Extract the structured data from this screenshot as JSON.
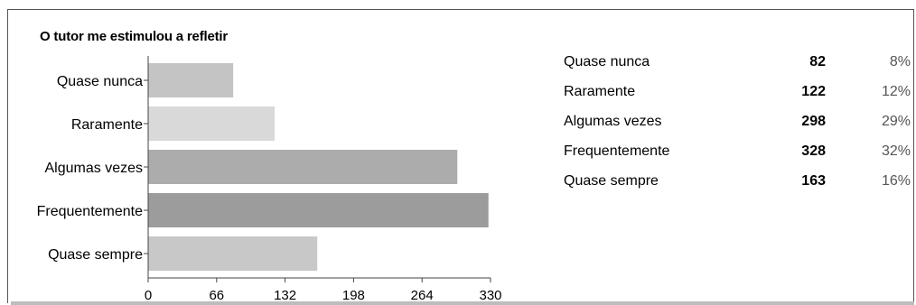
{
  "chart_data": {
    "type": "bar",
    "orientation": "horizontal",
    "title": "O tutor me estimulou a refletir",
    "categories": [
      "Quase nunca",
      "Raramente",
      "Algumas vezes",
      "Frequentemente",
      "Quase sempre"
    ],
    "values": [
      82,
      122,
      298,
      328,
      163
    ],
    "percentages": [
      "8%",
      "12%",
      "29%",
      "32%",
      "16%"
    ],
    "colors": [
      "#c4c4c4",
      "#d9d9d9",
      "#acacac",
      "#9c9c9c",
      "#c8c8c8"
    ],
    "xlim": [
      0,
      330
    ],
    "xticks": [
      0,
      66,
      132,
      198,
      264,
      330
    ],
    "grid": false
  }
}
